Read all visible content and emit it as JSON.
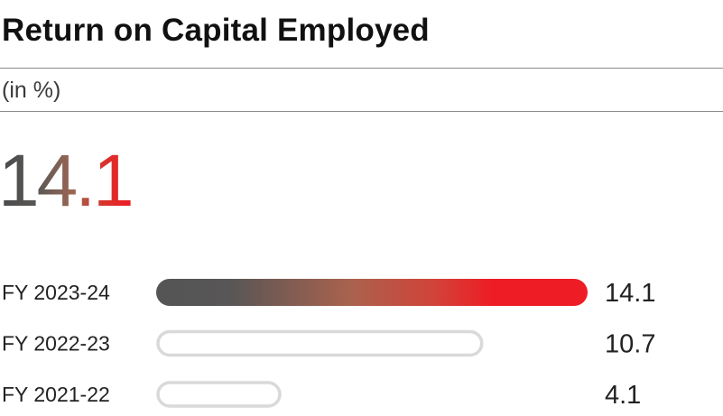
{
  "title": "Return on Capital Employed",
  "unit_label": "(in %)",
  "headline_value": "14.1",
  "chart_data": {
    "type": "bar",
    "orientation": "horizontal",
    "title": "Return on Capital Employed",
    "ylabel": "(in %)",
    "categories": [
      "FY 2023-24",
      "FY 2022-23",
      "FY 2021-22"
    ],
    "values": [
      14.1,
      10.7,
      4.1
    ],
    "value_labels": [
      "14.1",
      "10.7",
      "4.1"
    ],
    "highlight_index": 0,
    "xlim": [
      0,
      14.1
    ],
    "grid": false,
    "legend": "none",
    "colors": {
      "highlight_start": "#555555",
      "highlight_mid": "#b85a45",
      "highlight_end": "#ee1c25",
      "outline": "#d9d9d9",
      "text": "#222222"
    }
  }
}
